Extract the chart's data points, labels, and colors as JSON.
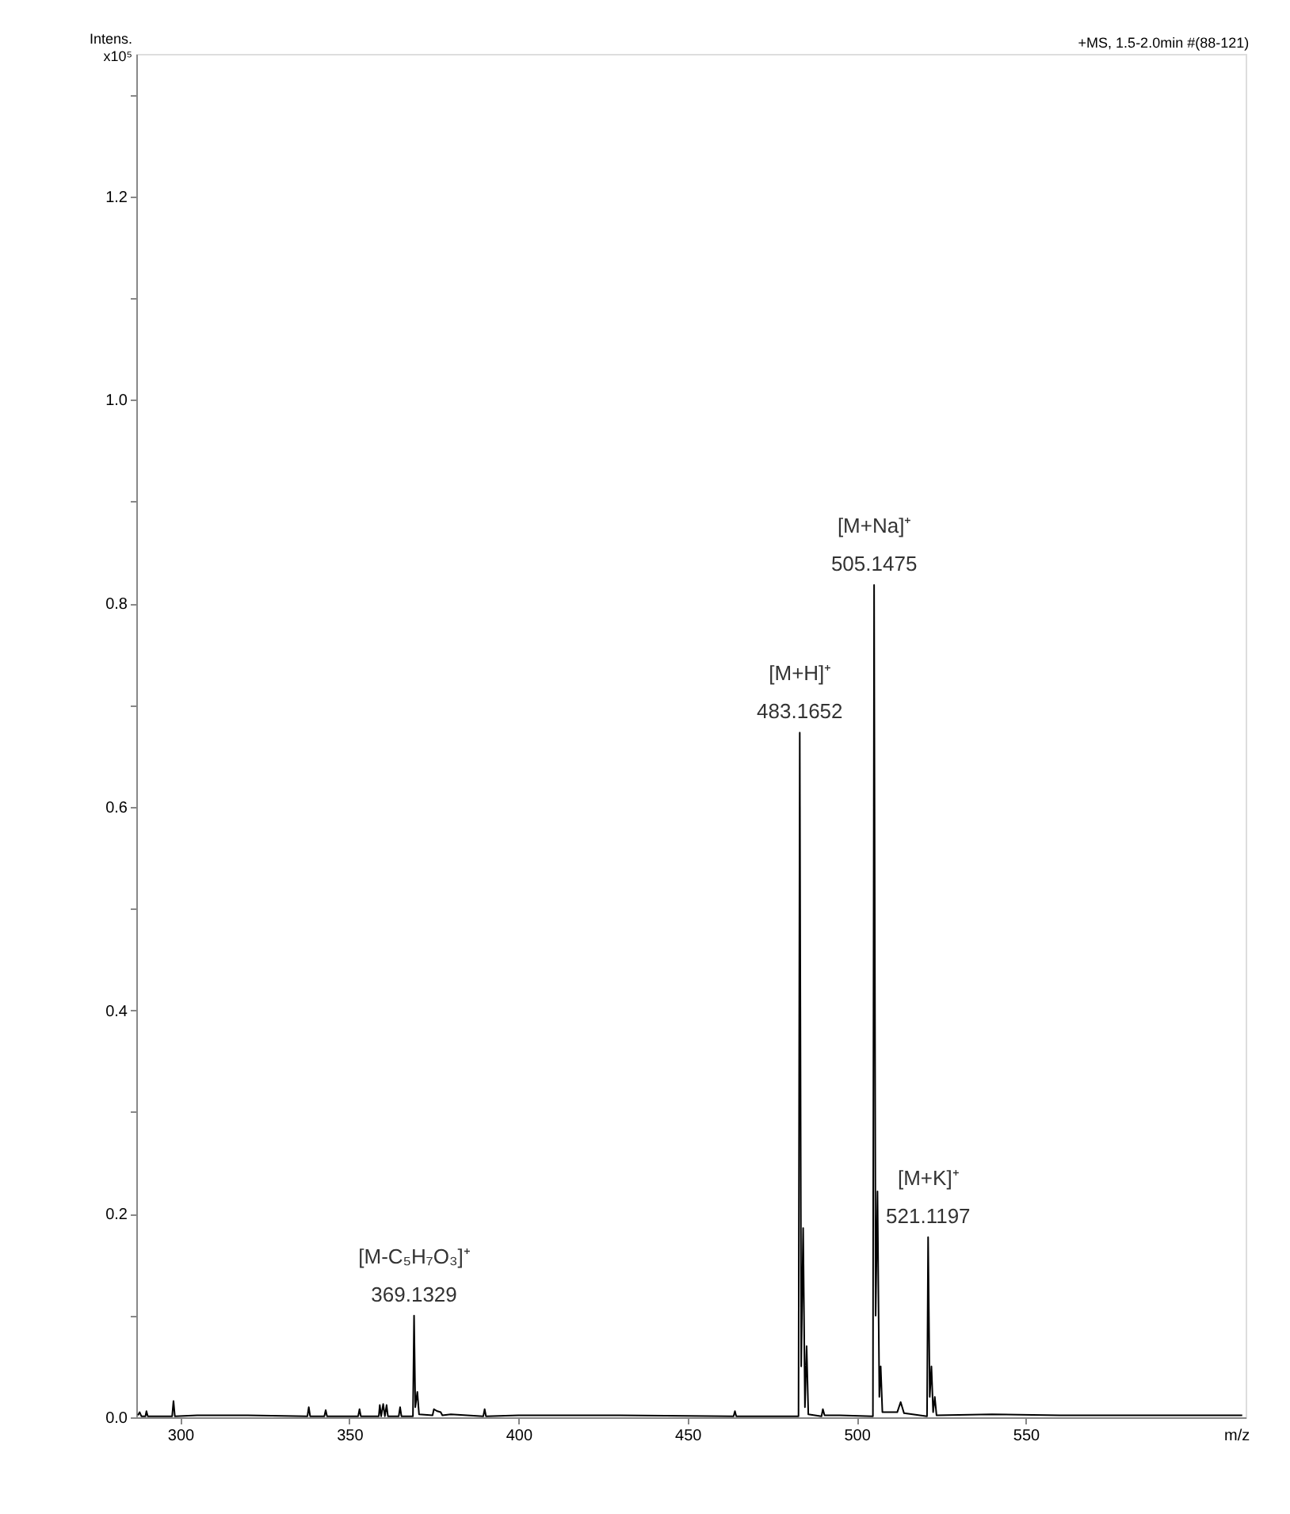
{
  "chart_data": {
    "type": "line",
    "title": "+MS, 1.5-2.0min #(88-121)",
    "xlabel": "m/z",
    "ylabel": "Intens.\nx10⁵",
    "x": [
      287.5,
      288,
      288.5,
      289.7,
      290,
      290.4,
      297.6,
      298,
      298.4,
      305,
      320,
      337.6,
      338,
      338.4,
      342.6,
      343,
      343.4,
      352.6,
      353,
      353.4,
      358.7,
      359,
      359.4,
      360,
      360.5,
      361,
      361.4,
      364.6,
      365,
      365.4,
      368.8,
      369.13,
      369.5,
      370.1,
      370.6,
      374.6,
      375,
      376,
      377,
      377.5,
      380,
      389.6,
      390,
      390.4,
      400,
      430,
      463.6,
      464,
      464.4,
      482.8,
      483.17,
      483.6,
      484.17,
      484.7,
      485.2,
      485.7,
      489.6,
      490,
      490.5,
      495,
      504.8,
      505.15,
      505.6,
      506.15,
      506.7,
      507.1,
      507.6,
      512,
      513,
      514,
      520.8,
      521.12,
      521.6,
      522.1,
      522.6,
      523.1,
      523.6,
      540,
      560,
      580,
      600,
      614
    ],
    "values": [
      0.002,
      0.005,
      0.001,
      0.001,
      0.006,
      0.001,
      0.001,
      0.016,
      0.001,
      0.002,
      0.002,
      0.001,
      0.01,
      0.001,
      0.001,
      0.007,
      0.001,
      0.001,
      0.008,
      0.001,
      0.001,
      0.012,
      0.001,
      0.013,
      0.001,
      0.012,
      0.001,
      0.001,
      0.01,
      0.001,
      0.001,
      0.1,
      0.01,
      0.025,
      0.003,
      0.002,
      0.008,
      0.006,
      0.005,
      0.002,
      0.003,
      0.001,
      0.008,
      0.001,
      0.002,
      0.002,
      0.001,
      0.006,
      0.001,
      0.001,
      0.673,
      0.05,
      0.186,
      0.01,
      0.07,
      0.003,
      0.001,
      0.008,
      0.002,
      0.002,
      0.001,
      0.818,
      0.1,
      0.222,
      0.02,
      0.05,
      0.005,
      0.005,
      0.015,
      0.004,
      0.001,
      0.177,
      0.02,
      0.05,
      0.005,
      0.02,
      0.002,
      0.003,
      0.002,
      0.002,
      0.002,
      0.002
    ],
    "color": "#000000",
    "xlim": [
      287,
      615
    ],
    "ylim": [
      0,
      1.34
    ],
    "xticks": [
      300,
      350,
      400,
      450,
      500,
      550
    ],
    "yticks": [
      {
        "value": 0,
        "label": "0.0"
      },
      {
        "value": 0.1,
        "label": null
      },
      {
        "value": 0.2,
        "label": "0.2"
      },
      {
        "value": 0.3,
        "label": null
      },
      {
        "value": 0.4,
        "label": "0.4"
      },
      {
        "value": 0.5,
        "label": null
      },
      {
        "value": 0.6,
        "label": "0.6"
      },
      {
        "value": 0.7,
        "label": null
      },
      {
        "value": 0.8,
        "label": "0.8"
      },
      {
        "value": 0.9,
        "label": null
      },
      {
        "value": 1.0,
        "label": "1.0"
      },
      {
        "value": 1.1,
        "label": null
      },
      {
        "value": 1.2,
        "label": "1.2"
      },
      {
        "value": 1.3,
        "label": null
      }
    ],
    "annotations": [
      {
        "text": "[M-C₅H₇O₃]⁺\n369.1329",
        "x": 369.13,
        "y": 0.1
      },
      {
        "text": "[M+H]⁺\n483.1652",
        "x": 483.17,
        "y": 0.673
      },
      {
        "text": "[M+Na]⁺\n505.1475",
        "x": 505.15,
        "y": 0.818
      },
      {
        "text": "[M+K]⁺\n521.1197",
        "x": 521.12,
        "y": 0.177
      }
    ],
    "grid": false,
    "marker": "none",
    "line_style": "solid"
  }
}
